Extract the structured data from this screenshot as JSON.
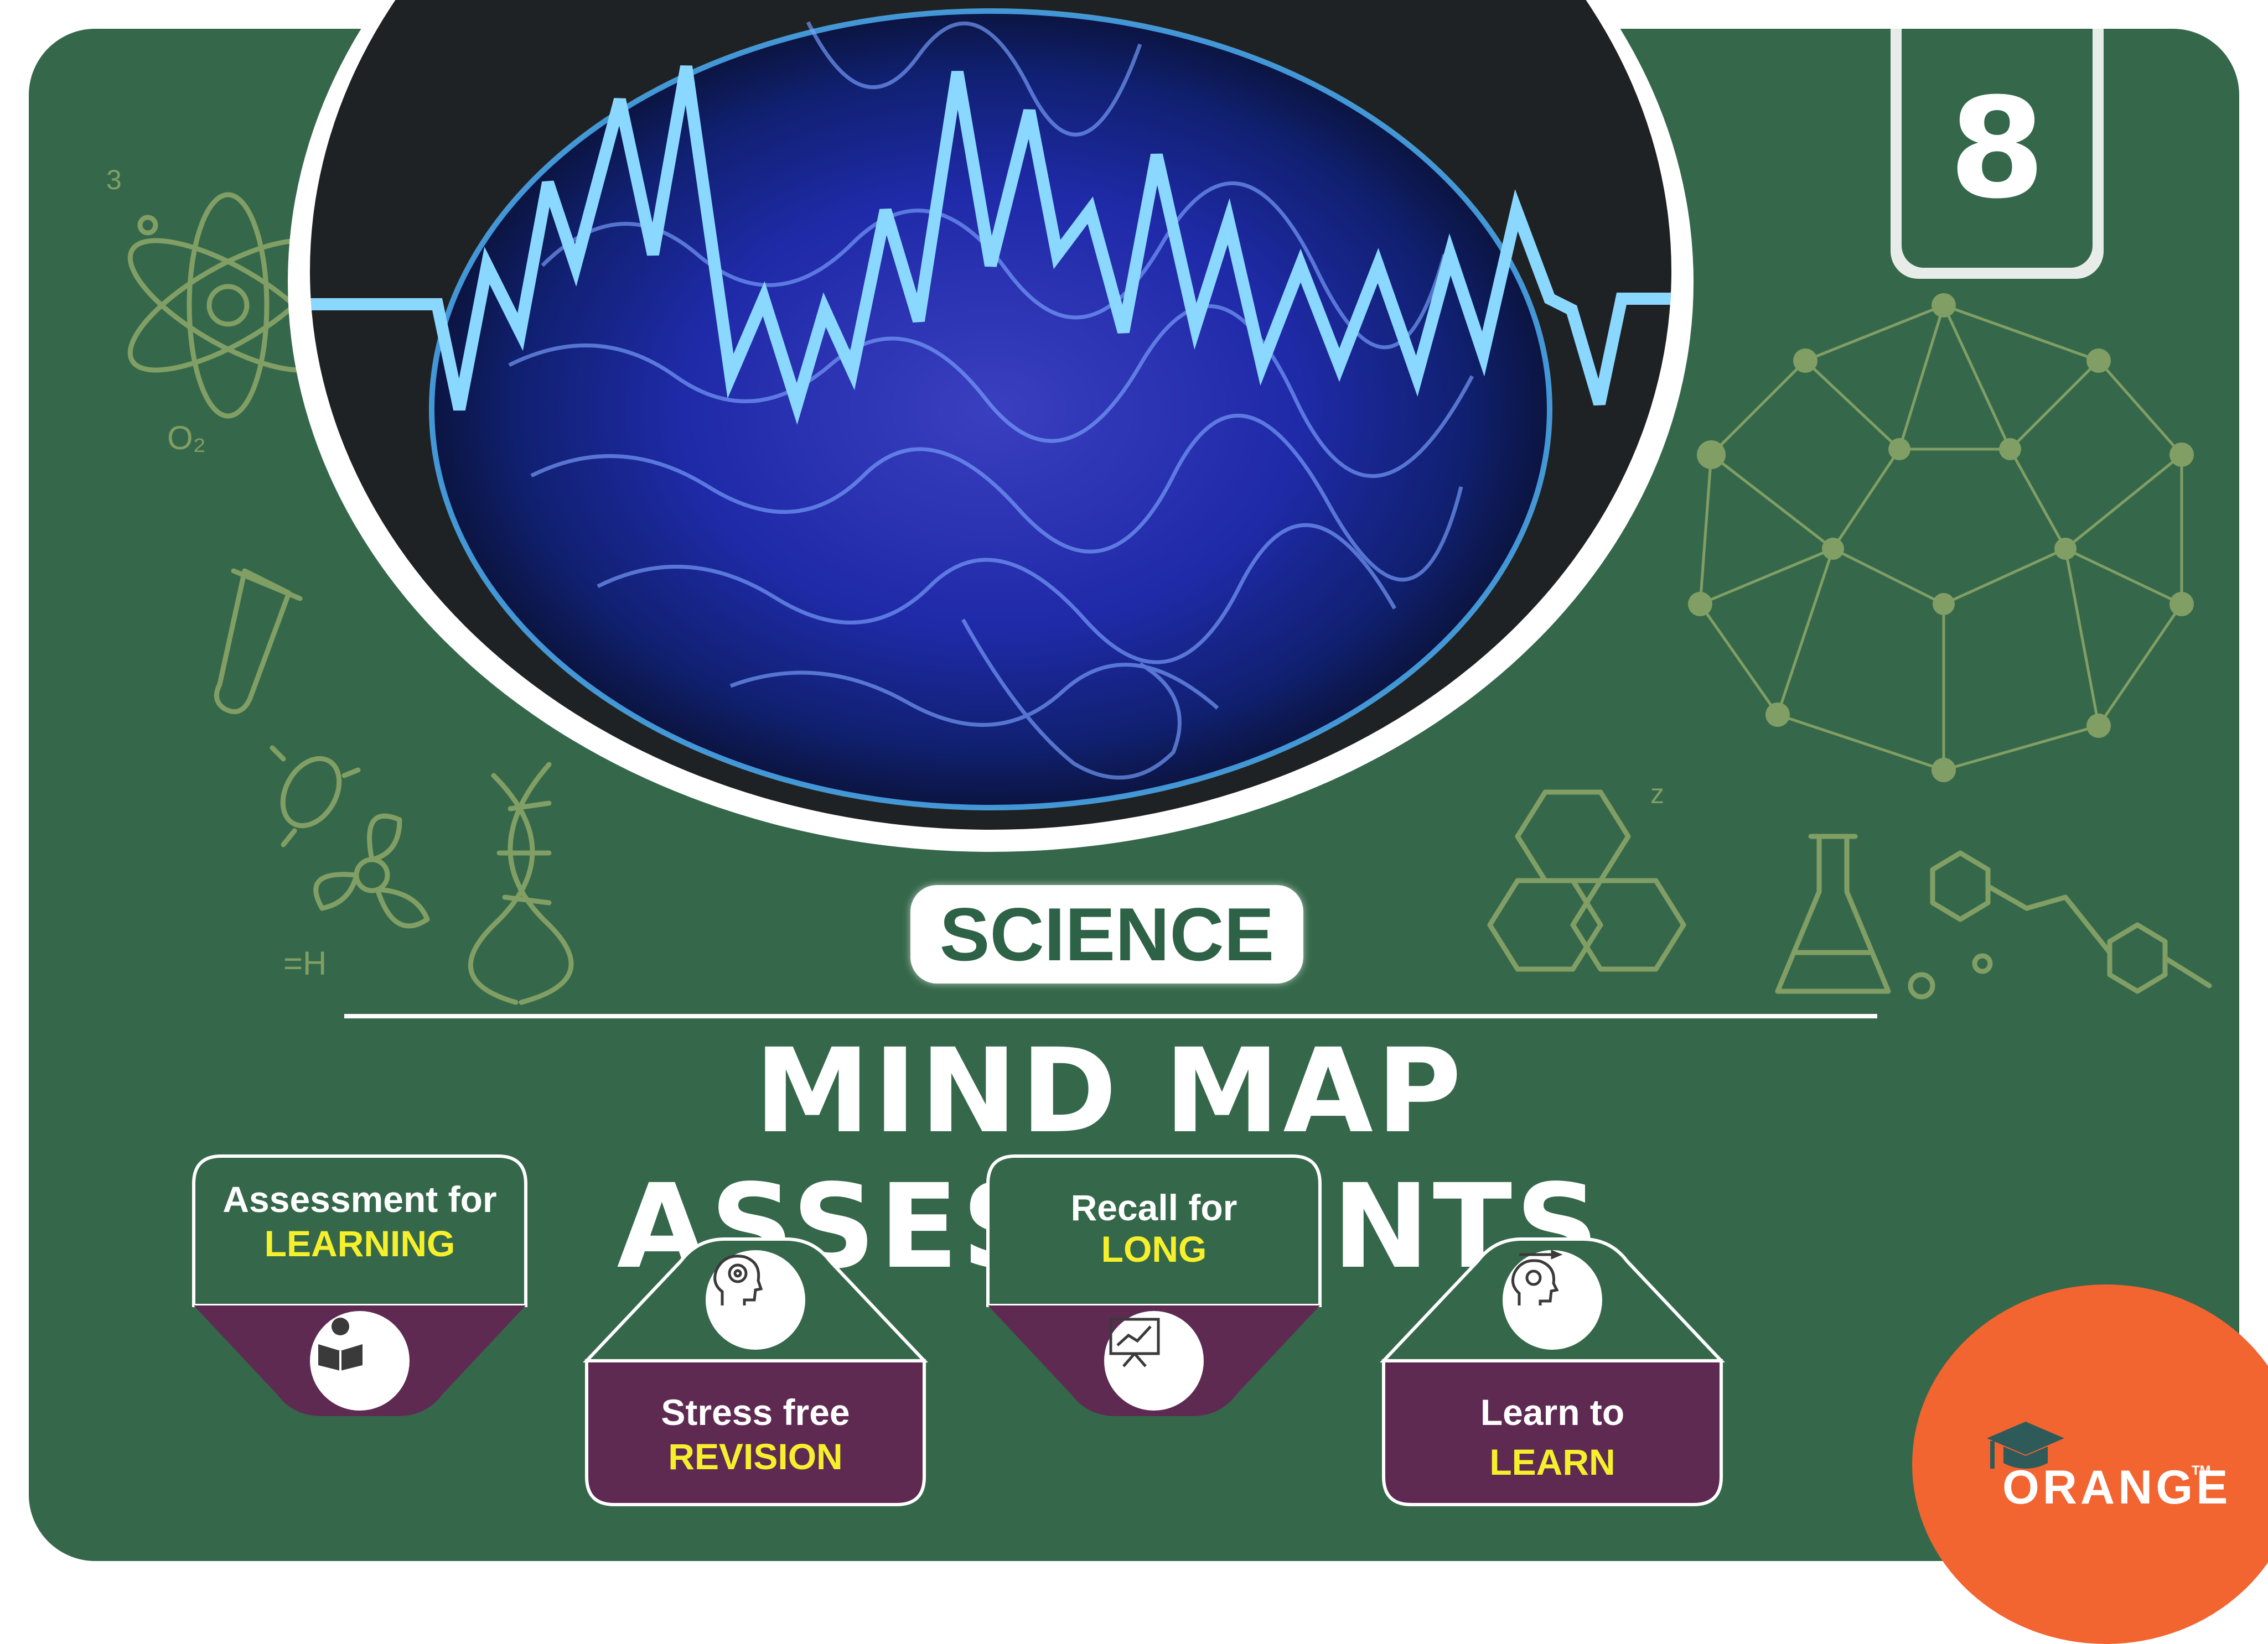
{
  "cover": {
    "grade": "8",
    "subject": "SCIENCE",
    "title": "MIND MAP ASSESSMENTS",
    "brand": "ORANGE",
    "trademark": "TM"
  },
  "cards": [
    {
      "line1": "Assessment for",
      "line2": "LEARNING",
      "icon": "reading-person-icon"
    },
    {
      "line1": "Stress free",
      "line2": "REVISION",
      "icon": "brain-head-icon"
    },
    {
      "line1": "Recall for",
      "line2": "LONG",
      "icon": "presentation-chart-icon"
    },
    {
      "line1": "Learn to",
      "line2": "LEARN",
      "icon": "mind-gear-icon"
    }
  ],
  "colors": {
    "background_green": "#35684a",
    "card_purple": "#5e2a52",
    "highlight_yellow": "#f6f02c",
    "brand_orange": "#f26430",
    "wave_cyan": "#7fd4ff"
  }
}
